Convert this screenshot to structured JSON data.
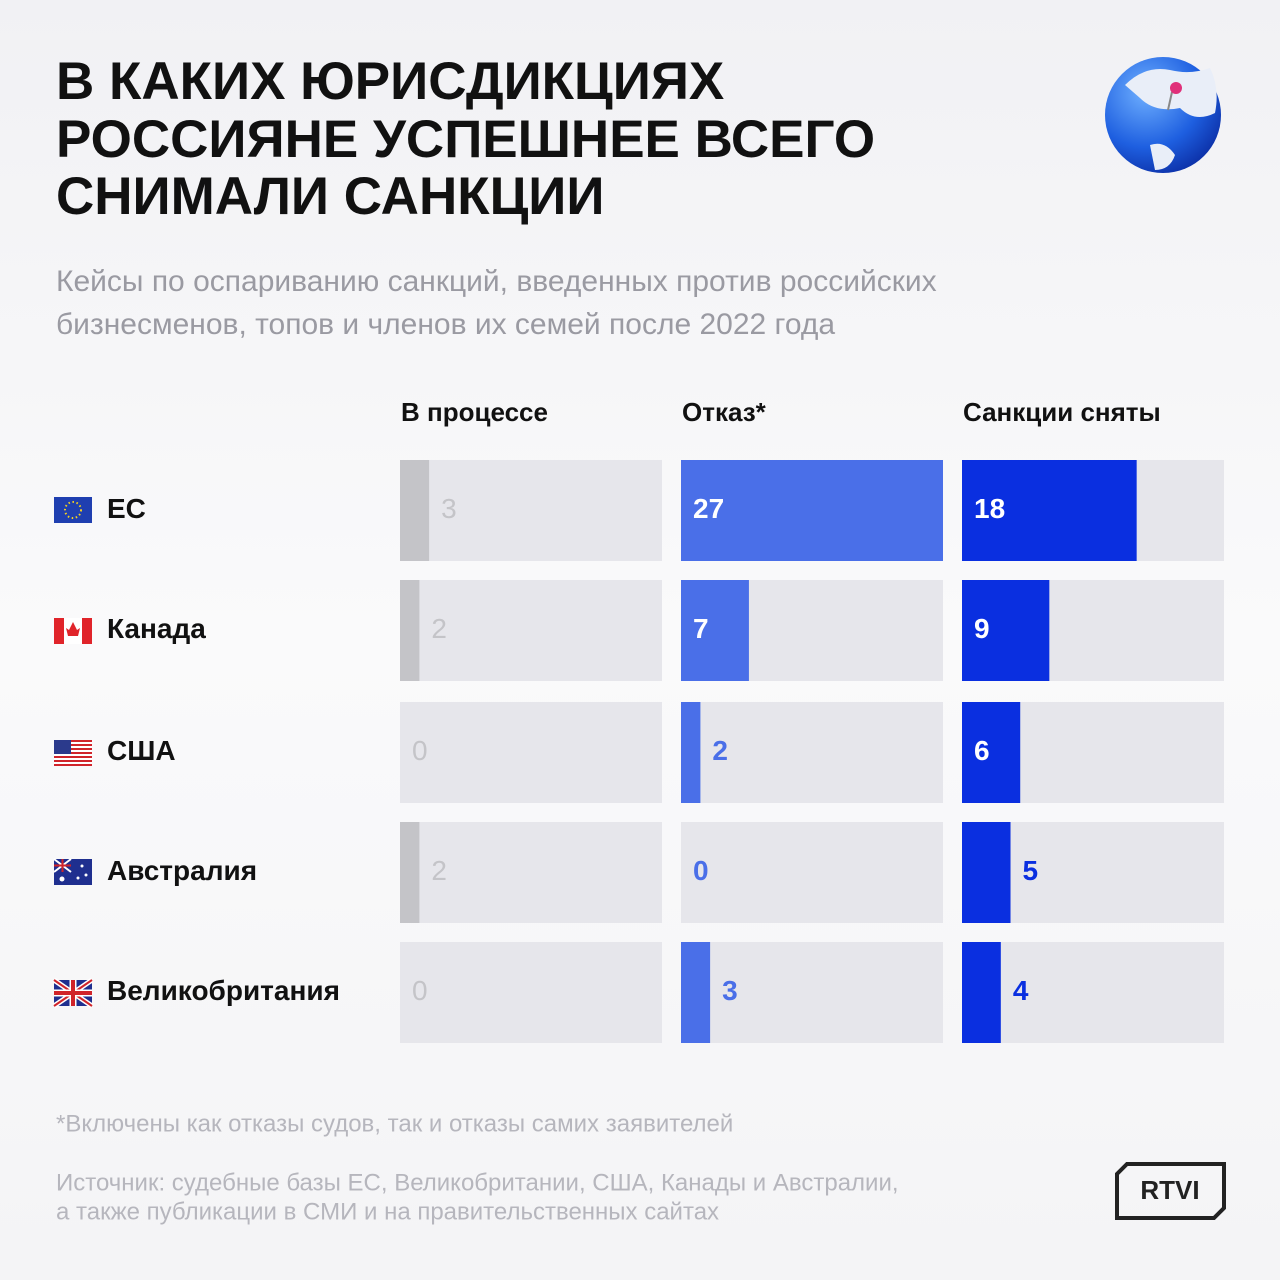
{
  "chart_data": {
    "type": "bar",
    "title": [
      "В КАКИХ ЮРИСДИКЦИЯХ",
      "РОССИЯНЕ УСПЕШНЕЕ ВСЕГО",
      "СНИМАЛИ САНКЦИИ"
    ],
    "subtitle": [
      "Кейсы по оспариванию санкций, введенных против российских",
      "бизнесменов, топов и членов их семей после 2022 года"
    ],
    "categories": [
      "ЕС",
      "Канада",
      "США",
      "Австралия",
      "Великобритания"
    ],
    "series": [
      {
        "name": "В процессе",
        "color": "#c4c4c8",
        "values": [
          3,
          2,
          0,
          2,
          0
        ]
      },
      {
        "name": "Отказ*",
        "color": "#4a6fe8",
        "values": [
          27,
          7,
          2,
          0,
          3
        ]
      },
      {
        "name": "Санкции сняты",
        "color": "#0a2fe0",
        "values": [
          18,
          9,
          6,
          5,
          4
        ]
      }
    ],
    "xlim": [
      0,
      27
    ],
    "footnote": "*Включены как отказы судов, так и отказы самих заявителей",
    "source": [
      "Источник: судебные базы ЕС, Великобритании, США, Канады и Австралии,",
      "а также публикации в СМИ и на правительственных сайтах"
    ],
    "logo": "RTVI"
  }
}
